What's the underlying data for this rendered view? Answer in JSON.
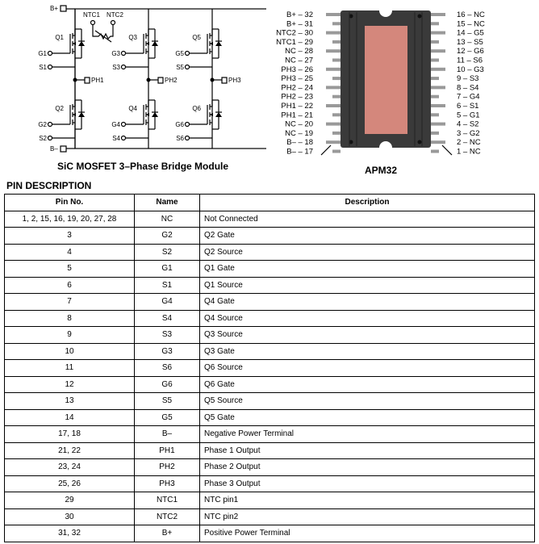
{
  "schematic": {
    "caption": "SiC MOSFET 3–Phase Bridge Module",
    "bplus": "B+",
    "bminus": "B–",
    "ntc1": "NTC1",
    "ntc2": "NTC2",
    "legs": [
      {
        "q_hi": "Q1",
        "g_hi": "G1",
        "s_hi": "S1",
        "ph": "PH1",
        "q_lo": "Q2",
        "g_lo": "G2",
        "s_lo": "S2"
      },
      {
        "q_hi": "Q3",
        "g_hi": "G3",
        "s_hi": "S3",
        "ph": "PH2",
        "q_lo": "Q4",
        "g_lo": "G4",
        "s_lo": "S4"
      },
      {
        "q_hi": "Q5",
        "g_hi": "G5",
        "s_hi": "S5",
        "ph": "PH3",
        "q_lo": "Q6",
        "g_lo": "G6",
        "s_lo": "S6"
      }
    ]
  },
  "package": {
    "caption": "APM32",
    "body_color": "#3a3a3a",
    "pad_color": "#d4877c",
    "left_pins": [
      "B+ – 32",
      "B+ – 31",
      "NTC2 – 30",
      "NTC1 – 29",
      "NC – 28",
      "NC – 27",
      "PH3 – 26",
      "PH3 – 25",
      "PH2 – 24",
      "PH2 – 23",
      "PH1 – 22",
      "PH1 – 21",
      "NC – 20",
      "NC – 19",
      "B– – 18",
      "B– – 17"
    ],
    "right_pins": [
      "16 – NC",
      "15 – NC",
      "14 – G5",
      "13 – S5",
      "12 – G6",
      "11 – S6",
      "10 – G3",
      "9 – S3",
      "8 – S4",
      "7 – G4",
      "6 – S1",
      "5 – G1",
      "4 – S2",
      "3 – G2",
      "2 – NC",
      "1 – NC"
    ]
  },
  "pin_description": {
    "title": "PIN DESCRIPTION",
    "headers": [
      "Pin No.",
      "Name",
      "Description"
    ],
    "rows": [
      [
        "1, 2, 15, 16, 19, 20, 27, 28",
        "NC",
        "Not Connected"
      ],
      [
        "3",
        "G2",
        "Q2 Gate"
      ],
      [
        "4",
        "S2",
        "Q2 Source"
      ],
      [
        "5",
        "G1",
        "Q1 Gate"
      ],
      [
        "6",
        "S1",
        "Q1 Source"
      ],
      [
        "7",
        "G4",
        "Q4 Gate"
      ],
      [
        "8",
        "S4",
        "Q4 Source"
      ],
      [
        "9",
        "S3",
        "Q3 Source"
      ],
      [
        "10",
        "G3",
        "Q3 Gate"
      ],
      [
        "11",
        "S6",
        "Q6 Source"
      ],
      [
        "12",
        "G6",
        "Q6 Gate"
      ],
      [
        "13",
        "S5",
        "Q5 Source"
      ],
      [
        "14",
        "G5",
        "Q5 Gate"
      ],
      [
        "17, 18",
        "B–",
        "Negative Power Terminal"
      ],
      [
        "21, 22",
        "PH1",
        "Phase 1 Output"
      ],
      [
        "23, 24",
        "PH2",
        "Phase 2 Output"
      ],
      [
        "25, 26",
        "PH3",
        "Phase 3 Output"
      ],
      [
        "29",
        "NTC1",
        "NTC pin1"
      ],
      [
        "30",
        "NTC2",
        "NTC pin2"
      ],
      [
        "31, 32",
        "B+",
        "Positive Power Terminal"
      ]
    ]
  }
}
